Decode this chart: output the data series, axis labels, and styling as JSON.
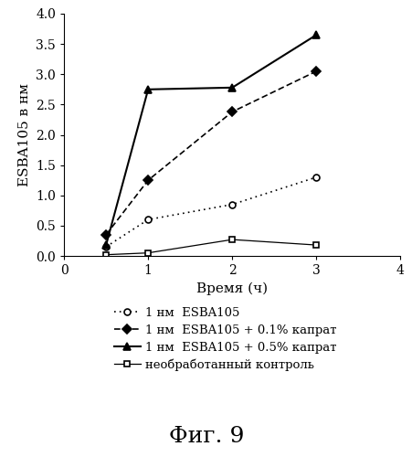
{
  "title": "Фиг. 9",
  "xlabel": "Время (ч)",
  "ylabel": "ESBA105 в нм",
  "xlim": [
    0,
    4
  ],
  "ylim": [
    0,
    4.0
  ],
  "xticks": [
    0,
    1,
    2,
    3,
    4
  ],
  "yticks": [
    0.0,
    0.5,
    1.0,
    1.5,
    2.0,
    2.5,
    3.0,
    3.5,
    4.0
  ],
  "series": [
    {
      "label": "1 нм  ESBA105",
      "x": [
        0.5,
        1,
        2,
        3
      ],
      "y": [
        0.15,
        0.6,
        0.85,
        1.3
      ],
      "color": "#000000",
      "linestyle": "dotted",
      "marker": "o",
      "markersize": 5,
      "linewidth": 1.2,
      "markerfacecolor": "white",
      "markeredgecolor": "black"
    },
    {
      "label": "1 нм  ESBA105 + 0.1% капрат",
      "x": [
        0.5,
        1,
        2,
        3
      ],
      "y": [
        0.35,
        1.25,
        2.38,
        3.05
      ],
      "color": "#000000",
      "linestyle": "dashed",
      "marker": "D",
      "markersize": 5,
      "linewidth": 1.2,
      "markerfacecolor": "black",
      "markeredgecolor": "black"
    },
    {
      "label": "1 нм  ESBA105 + 0.5% капрат",
      "x": [
        0.5,
        1,
        2,
        3
      ],
      "y": [
        0.18,
        2.75,
        2.78,
        3.65
      ],
      "color": "#000000",
      "linestyle": "solid",
      "marker": "^",
      "markersize": 6,
      "linewidth": 1.5,
      "markerfacecolor": "black",
      "markeredgecolor": "black"
    },
    {
      "label": "необработанный контроль",
      "x": [
        0.5,
        1,
        2,
        3
      ],
      "y": [
        0.02,
        0.05,
        0.27,
        0.18
      ],
      "color": "#000000",
      "linestyle": "solid",
      "marker": "s",
      "markersize": 5,
      "linewidth": 0.9,
      "markerfacecolor": "white",
      "markeredgecolor": "black"
    }
  ],
  "background_color": "#ffffff",
  "legend_fontsize": 9.5,
  "axis_fontsize": 11,
  "tick_fontsize": 10,
  "title_fontsize": 18,
  "ylabel_rotation": 90
}
